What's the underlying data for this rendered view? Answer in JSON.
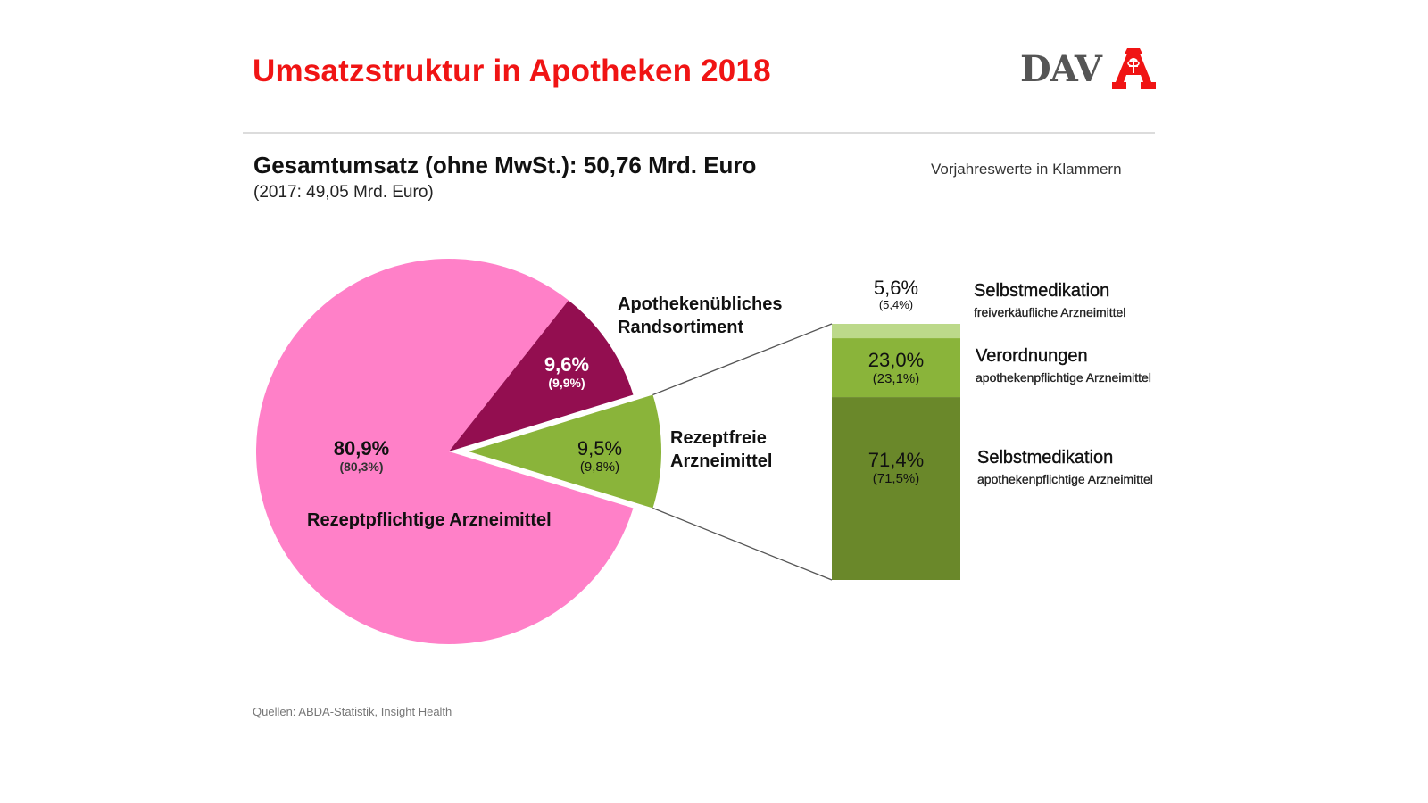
{
  "slide": {
    "title": "Umsatzstruktur in Apotheken 2018",
    "logo_text": "DAV",
    "logo_icon": "apotheke-a-icon",
    "total_label": "Gesamtumsatz (ohne MwSt.): 50,76 Mrd. Euro",
    "total_prev": "(2017: 49,05 Mrd. Euro)",
    "note": "Vorjahreswerte in Klammern",
    "source": "Quellen: ABDA-Statistik, Insight Health"
  },
  "chart_data": [
    {
      "type": "pie",
      "title": "Gesamtumsatz (ohne MwSt.): 50,76 Mrd. Euro",
      "unit": "%",
      "slices": [
        {
          "name": "Rezeptpflichtige Arzneimittel",
          "value": 80.9,
          "label": "80,9%",
          "prev": 2017,
          "prev_label": "(80,3%)",
          "prev_value": 80.3,
          "color": "#ff80c8",
          "exploded": false
        },
        {
          "name": "Apothekenübliches Randsortiment",
          "value": 9.6,
          "label": "9,6%",
          "prev_label": "(9,9%)",
          "prev_value": 9.9,
          "color": "#930e50",
          "exploded": false
        },
        {
          "name": "Rezeptfreie Arzneimittel",
          "value": 9.5,
          "label": "9,5%",
          "prev_label": "(9,8%)",
          "prev_value": 9.8,
          "color": "#8ab43a",
          "exploded": true
        }
      ],
      "labels": {
        "rx": "Rezeptpflichtige Arzneimittel",
        "rand_line1": "Apothekenübliches",
        "rand_line2": "Randsortiment",
        "otc_line1": "Rezeptfreie",
        "otc_line2": "Arzneimittel"
      }
    },
    {
      "type": "bar",
      "stacked": true,
      "title": "Rezeptfreie Arzneimittel (Aufschlüsselung)",
      "unit": "%",
      "segments": [
        {
          "name": "Selbstmedikation",
          "subtitle": "freiverkäufliche Arzneimittel",
          "value": 5.6,
          "label": "5,6%",
          "prev_label": "(5,4%)",
          "prev_value": 5.4,
          "color": "#bcd98a"
        },
        {
          "name": "Verordnungen",
          "subtitle": "apothekenpflichtige Arzneimittel",
          "value": 23.0,
          "label": "23,0%",
          "prev_label": "(23,1%)",
          "prev_value": 23.1,
          "color": "#8ab43a"
        },
        {
          "name": "Selbstmedikation",
          "subtitle": "apothekenpflichtige Arzneimittel",
          "value": 71.4,
          "label": "71,4%",
          "prev_label": "(71,5%)",
          "prev_value": 71.5,
          "color": "#6a882a"
        }
      ]
    }
  ]
}
